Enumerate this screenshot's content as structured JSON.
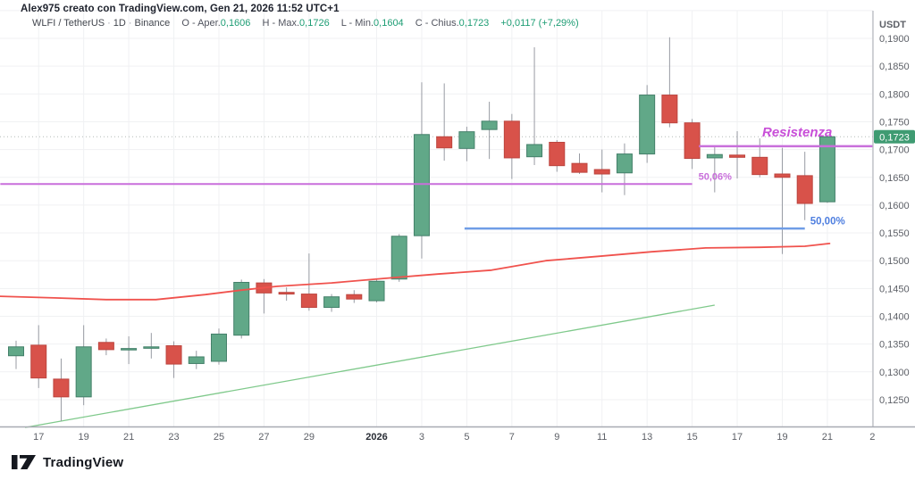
{
  "header": {
    "byline": "Alex975 creato con TradingView.com, Gen 21, 2026 11:52 UTC+1",
    "symbol": "WLFI / TetherUS",
    "separator": "·",
    "timeframe": "1D",
    "exchange": "Binance",
    "ohlc": [
      {
        "label": "O - Aper.",
        "value": "0,1606"
      },
      {
        "label": "H - Max.",
        "value": "0,1726"
      },
      {
        "label": "L - Min.",
        "value": "0,1604"
      },
      {
        "label": "C - Chius.",
        "value": "0,1723"
      }
    ],
    "change": "+0,0117 (+7,29%)"
  },
  "footer": {
    "logo_text": "TradingView"
  },
  "colors": {
    "up_fill": "#61a888",
    "up_border": "#44806a",
    "down_fill": "#d8524a",
    "down_border": "#bc453f",
    "wick": "#989ba3",
    "ma_red": "#f0524d",
    "trend_green": "#7fc98b",
    "fib_purple": "#c96fdb",
    "fib_blue": "#6f9de6",
    "resistance_text": "#c84fd8",
    "blue_label": "#4f7fe0",
    "grid": "#f0f1f3",
    "axis_line": "#a7aab2",
    "axis_text": "#5d6067",
    "badge_bg": "#3f9b72",
    "badge_text": "#ffffff",
    "close_dotted": "#9aa3a0"
  },
  "chart_data": {
    "type": "candlestick",
    "title": "WLFI / TetherUS 1D Binance",
    "currency": "USDT",
    "last_price": {
      "value": 0.1723,
      "label": "0,1723"
    },
    "candles": [
      {
        "date": "16 Dic",
        "o": 0.1329,
        "h": 0.1356,
        "l": 0.1305,
        "c": 0.1345
      },
      {
        "date": "17 Dic",
        "o": 0.1348,
        "h": 0.1384,
        "l": 0.1271,
        "c": 0.1289
      },
      {
        "date": "18 Dic",
        "o": 0.1287,
        "h": 0.1324,
        "l": 0.1211,
        "c": 0.1255
      },
      {
        "date": "19 Dic",
        "o": 0.1255,
        "h": 0.1384,
        "l": 0.124,
        "c": 0.1345
      },
      {
        "date": "20 Dic",
        "o": 0.1353,
        "h": 0.136,
        "l": 0.133,
        "c": 0.134
      },
      {
        "date": "21 Dic",
        "o": 0.134,
        "h": 0.1364,
        "l": 0.1314,
        "c": 0.1342
      },
      {
        "date": "22 Dic",
        "o": 0.1343,
        "h": 0.137,
        "l": 0.1324,
        "c": 0.1345
      },
      {
        "date": "23 Dic",
        "o": 0.1347,
        "h": 0.1355,
        "l": 0.1289,
        "c": 0.1314
      },
      {
        "date": "24 Dic",
        "o": 0.1315,
        "h": 0.1338,
        "l": 0.1305,
        "c": 0.1327
      },
      {
        "date": "25 Dic",
        "o": 0.1319,
        "h": 0.1378,
        "l": 0.1313,
        "c": 0.1368
      },
      {
        "date": "26 Dic",
        "o": 0.1366,
        "h": 0.1466,
        "l": 0.136,
        "c": 0.1461
      },
      {
        "date": "27 Dic",
        "o": 0.146,
        "h": 0.1467,
        "l": 0.1405,
        "c": 0.1442
      },
      {
        "date": "28 Dic",
        "o": 0.1443,
        "h": 0.1452,
        "l": 0.1428,
        "c": 0.144
      },
      {
        "date": "29 Dic",
        "o": 0.144,
        "h": 0.1513,
        "l": 0.141,
        "c": 0.1416
      },
      {
        "date": "30 Dic",
        "o": 0.1416,
        "h": 0.144,
        "l": 0.1408,
        "c": 0.1435
      },
      {
        "date": "31 Dic",
        "o": 0.1439,
        "h": 0.1447,
        "l": 0.1424,
        "c": 0.1431
      },
      {
        "date": "1 Gen",
        "o": 0.1428,
        "h": 0.1468,
        "l": 0.1425,
        "c": 0.1463
      },
      {
        "date": "2 Gen",
        "o": 0.1467,
        "h": 0.1548,
        "l": 0.1462,
        "c": 0.1544
      },
      {
        "date": "3 Gen",
        "o": 0.1545,
        "h": 0.1821,
        "l": 0.1504,
        "c": 0.1727
      },
      {
        "date": "4 Gen",
        "o": 0.1723,
        "h": 0.1819,
        "l": 0.168,
        "c": 0.1703
      },
      {
        "date": "5 Gen",
        "o": 0.1702,
        "h": 0.1741,
        "l": 0.1679,
        "c": 0.1732
      },
      {
        "date": "6 Gen",
        "o": 0.1736,
        "h": 0.1786,
        "l": 0.1683,
        "c": 0.1751
      },
      {
        "date": "7 Gen",
        "o": 0.1751,
        "h": 0.1764,
        "l": 0.1647,
        "c": 0.1685
      },
      {
        "date": "8 Gen",
        "o": 0.1687,
        "h": 0.1884,
        "l": 0.1672,
        "c": 0.1709
      },
      {
        "date": "9 Gen",
        "o": 0.1713,
        "h": 0.1717,
        "l": 0.166,
        "c": 0.1671
      },
      {
        "date": "10 Gen",
        "o": 0.1675,
        "h": 0.1693,
        "l": 0.1656,
        "c": 0.1659
      },
      {
        "date": "11 Gen",
        "o": 0.1664,
        "h": 0.17,
        "l": 0.1623,
        "c": 0.1656
      },
      {
        "date": "12 Gen",
        "o": 0.1658,
        "h": 0.1711,
        "l": 0.1618,
        "c": 0.1692
      },
      {
        "date": "13 Gen",
        "o": 0.1692,
        "h": 0.1816,
        "l": 0.1676,
        "c": 0.1798
      },
      {
        "date": "14 Gen",
        "o": 0.1798,
        "h": 0.1902,
        "l": 0.174,
        "c": 0.1748
      },
      {
        "date": "15 Gen",
        "o": 0.1748,
        "h": 0.1755,
        "l": 0.1665,
        "c": 0.1684
      },
      {
        "date": "16 Gen",
        "o": 0.1685,
        "h": 0.1706,
        "l": 0.1623,
        "c": 0.1691
      },
      {
        "date": "17 Gen",
        "o": 0.169,
        "h": 0.1733,
        "l": 0.1648,
        "c": 0.1686
      },
      {
        "date": "18 Gen",
        "o": 0.1686,
        "h": 0.172,
        "l": 0.165,
        "c": 0.1655
      },
      {
        "date": "19 Gen",
        "o": 0.1656,
        "h": 0.1703,
        "l": 0.1512,
        "c": 0.165
      },
      {
        "date": "20 Gen",
        "o": 0.1653,
        "h": 0.1696,
        "l": 0.1573,
        "c": 0.1603
      },
      {
        "date": "21 Gen",
        "o": 0.1606,
        "h": 0.1726,
        "l": 0.1604,
        "c": 0.1723
      }
    ],
    "y_axis": {
      "title": "USDT",
      "ticks": [
        {
          "label": "0,1900",
          "value": 0.19
        },
        {
          "label": "0,1850",
          "value": 0.185
        },
        {
          "label": "0,1800",
          "value": 0.18
        },
        {
          "label": "0,1750",
          "value": 0.175
        },
        {
          "label": "0,1700",
          "value": 0.17
        },
        {
          "label": "0,1650",
          "value": 0.165
        },
        {
          "label": "0,1600",
          "value": 0.16
        },
        {
          "label": "0,1550",
          "value": 0.155
        },
        {
          "label": "0,1500",
          "value": 0.15
        },
        {
          "label": "0,1450",
          "value": 0.145
        },
        {
          "label": "0,1400",
          "value": 0.14
        },
        {
          "label": "0,1350",
          "value": 0.135
        },
        {
          "label": "0,1300",
          "value": 0.13
        },
        {
          "label": "0,1250",
          "value": 0.125
        }
      ],
      "grid_extra": [
        0.195
      ]
    },
    "x_axis": {
      "ticks": [
        {
          "label": "17",
          "day": 1
        },
        {
          "label": "19",
          "day": 3
        },
        {
          "label": "21",
          "day": 5
        },
        {
          "label": "23",
          "day": 7
        },
        {
          "label": "25",
          "day": 9
        },
        {
          "label": "27",
          "day": 11
        },
        {
          "label": "29",
          "day": 13
        },
        {
          "label": "2026",
          "day": 16,
          "bold": true
        },
        {
          "label": "3",
          "day": 18
        },
        {
          "label": "5",
          "day": 20
        },
        {
          "label": "7",
          "day": 22
        },
        {
          "label": "9",
          "day": 24
        },
        {
          "label": "11",
          "day": 26
        },
        {
          "label": "13",
          "day": 28
        },
        {
          "label": "15",
          "day": 30
        },
        {
          "label": "17",
          "day": 32
        },
        {
          "label": "19",
          "day": 34
        },
        {
          "label": "21",
          "day": 36
        },
        {
          "label": "2",
          "day": 38
        }
      ]
    },
    "overlays": {
      "ma_red": {
        "points": [
          [
            -0.7,
            0.1436
          ],
          [
            1.7,
            0.1433
          ],
          [
            4.0,
            0.143
          ],
          [
            6.2,
            0.143
          ],
          [
            8.4,
            0.1439
          ],
          [
            10.0,
            0.1447
          ],
          [
            11.6,
            0.1454
          ],
          [
            14.0,
            0.146
          ],
          [
            16.3,
            0.1468
          ],
          [
            18.7,
            0.1476
          ],
          [
            21.1,
            0.1483
          ],
          [
            23.5,
            0.15
          ],
          [
            25.9,
            0.1508
          ],
          [
            28.2,
            0.1516
          ],
          [
            30.6,
            0.1523
          ],
          [
            33.0,
            0.1524
          ],
          [
            35.0,
            0.1526
          ],
          [
            36.1,
            0.1531
          ]
        ]
      },
      "trendline_green": {
        "from": {
          "day": 0.4,
          "price": 0.12
        },
        "to": {
          "day": 31.0,
          "price": 0.142
        }
      },
      "fib_level_1": {
        "price": 0.1638,
        "from_day": -0.7,
        "to_day": 30.0,
        "label": "50,06%"
      },
      "fib_level_2": {
        "price": 0.1558,
        "from_day": 19.9,
        "to_day": 35.0,
        "label": "50,00%"
      },
      "resistance": {
        "price": 0.1706,
        "from_day": 30.3,
        "to_day": 38.0,
        "label": "Resistenza"
      }
    }
  }
}
